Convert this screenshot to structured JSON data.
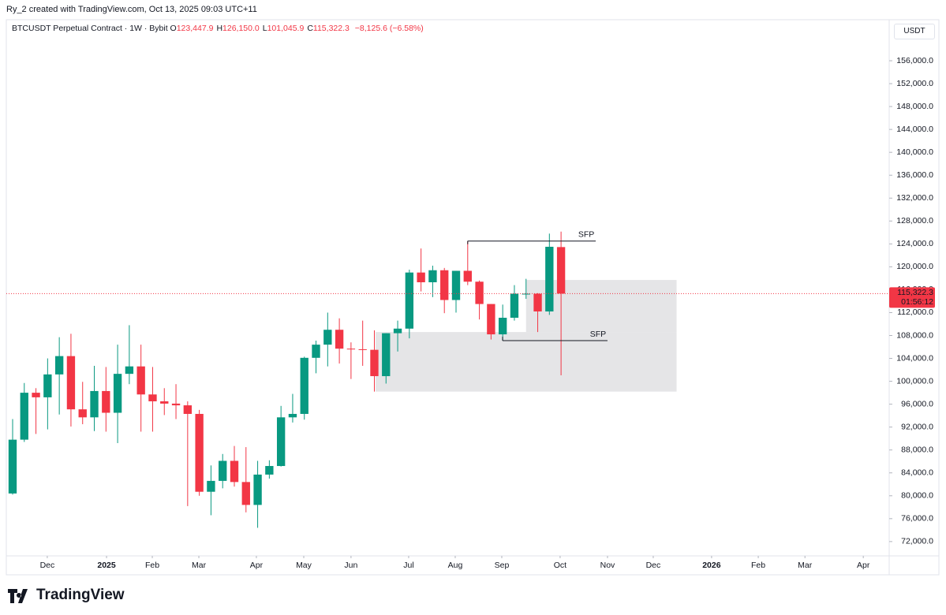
{
  "header": {
    "credit": "Ry_2 created with TradingView.com, Oct 13, 2025 09:03 UTC+11",
    "symbol": "BTCUSDT Perpetual Contract · 1W · Bybit",
    "ohlc": [
      {
        "label": "O",
        "value": "123,447.9"
      },
      {
        "label": "H",
        "value": "126,150.0"
      },
      {
        "label": "L",
        "value": "101,045.9"
      },
      {
        "label": "C",
        "value": "115,322.3"
      }
    ],
    "change": "−8,125.6 (−6.58%)",
    "unit": "USDT"
  },
  "chart_data": {
    "type": "candlestick",
    "x": [
      0,
      1,
      2,
      3,
      4,
      5,
      6,
      7,
      8,
      9,
      10,
      11,
      12,
      13,
      14,
      15,
      16,
      17,
      18,
      19,
      20,
      21,
      22,
      23,
      24,
      25,
      26,
      27,
      28,
      29,
      30,
      31,
      32,
      33,
      34,
      35,
      36,
      37,
      38,
      39,
      40,
      41,
      42,
      43,
      44,
      45,
      46,
      47
    ],
    "open": [
      80400,
      89800,
      98000,
      97200,
      101200,
      104400,
      95100,
      93700,
      98300,
      94500,
      101300,
      102600,
      97700,
      96500,
      96100,
      95800,
      94300,
      80700,
      82600,
      86100,
      82400,
      78400,
      83700,
      85200,
      93700,
      94300,
      104100,
      106400,
      109000,
      105700,
      105600,
      105500,
      100900,
      108400,
      109200,
      119000,
      117300,
      119400,
      114200,
      119300,
      117400,
      113500,
      108200,
      111100,
      115300,
      115300,
      112200,
      123447.9
    ],
    "high": [
      93400,
      99700,
      98800,
      104000,
      107700,
      108300,
      99900,
      102700,
      102500,
      106400,
      109800,
      106400,
      102500,
      98800,
      99500,
      96500,
      95000,
      85300,
      87300,
      88700,
      88500,
      86100,
      86200,
      95700,
      97800,
      104300,
      107100,
      112000,
      111000,
      106800,
      110600,
      108900,
      108400,
      110600,
      119500,
      123200,
      120200,
      119800,
      119300,
      124500,
      117600,
      113500,
      113400,
      116800,
      117900,
      115400,
      125800,
      126150.0
    ],
    "low": [
      80200,
      89400,
      90800,
      91600,
      94200,
      92100,
      92500,
      91300,
      91200,
      89200,
      99500,
      91200,
      91200,
      94100,
      93400,
      78200,
      80000,
      76600,
      81300,
      81600,
      77100,
      74400,
      83000,
      85100,
      92800,
      93300,
      101400,
      102600,
      103100,
      100400,
      102700,
      98200,
      99600,
      105200,
      107500,
      115700,
      114700,
      111900,
      112000,
      116800,
      110800,
      107300,
      107100,
      110600,
      114400,
      108600,
      111600,
      101045.9
    ],
    "close": [
      89800,
      98000,
      97200,
      101200,
      104400,
      95100,
      93700,
      98300,
      94500,
      101300,
      102600,
      97700,
      96500,
      96100,
      95800,
      94300,
      80700,
      82600,
      86100,
      82400,
      78400,
      83700,
      85200,
      93700,
      94300,
      104100,
      106400,
      109000,
      105700,
      105600,
      105500,
      100900,
      108400,
      109200,
      119000,
      117300,
      119400,
      114200,
      119300,
      117400,
      113500,
      108200,
      111100,
      115300,
      115300,
      112200,
      123500,
      115322.3
    ],
    "up_color": "#089981",
    "down_color": "#f23645",
    "xlim": [
      -0.54,
      75.12
    ],
    "xticks": [
      {
        "value": 2.97,
        "label": "Dec"
      },
      {
        "value": 8.05,
        "label": "2025"
      },
      {
        "value": 11.97,
        "label": "Feb"
      },
      {
        "value": 15.96,
        "label": "Mar"
      },
      {
        "value": 20.89,
        "label": "Apr"
      },
      {
        "value": 24.95,
        "label": "May"
      },
      {
        "value": 29.0,
        "label": "Jun"
      },
      {
        "value": 33.94,
        "label": "Jul"
      },
      {
        "value": 37.93,
        "label": "Aug"
      },
      {
        "value": 41.92,
        "label": "Sep"
      },
      {
        "value": 46.92,
        "label": "Oct"
      },
      {
        "value": 50.98,
        "label": "Nov"
      },
      {
        "value": 54.9,
        "label": "Dec"
      },
      {
        "value": 59.9,
        "label": "2026"
      },
      {
        "value": 63.9,
        "label": "Feb"
      },
      {
        "value": 67.9,
        "label": "Mar"
      },
      {
        "value": 72.9,
        "label": "Apr"
      }
    ],
    "ylim": [
      69500,
      160000
    ],
    "yticks": [
      {
        "value": 72000,
        "label": "72,000.0"
      },
      {
        "value": 76000,
        "label": "76,000.0"
      },
      {
        "value": 80000,
        "label": "80,000.0"
      },
      {
        "value": 84000,
        "label": "84,000.0"
      },
      {
        "value": 88000,
        "label": "88,000.0"
      },
      {
        "value": 92000,
        "label": "92,000.0"
      },
      {
        "value": 96000,
        "label": "96,000.0"
      },
      {
        "value": 100000,
        "label": "100,000.0"
      },
      {
        "value": 104000,
        "label": "104,000.0"
      },
      {
        "value": 108000,
        "label": "108,000.0"
      },
      {
        "value": 112000,
        "label": "112,000.0"
      },
      {
        "value": 116000,
        "label": "116,000.0"
      },
      {
        "value": 120000,
        "label": "120,000.0"
      },
      {
        "value": 124000,
        "label": "124,000.0"
      },
      {
        "value": 128000,
        "label": "128,000.0"
      },
      {
        "value": 132000,
        "label": "132,000.0"
      },
      {
        "value": 136000,
        "label": "136,000.0"
      },
      {
        "value": 140000,
        "label": "140,000.0"
      },
      {
        "value": 144000,
        "label": "144,000.0"
      },
      {
        "value": 148000,
        "label": "148,000.0"
      },
      {
        "value": 152000,
        "label": "152,000.0"
      },
      {
        "value": 156000,
        "label": "156,000.0"
      }
    ],
    "last_price": {
      "value": 115322.3,
      "label": "115,322.3",
      "countdown": "01:56:12"
    },
    "zones": [
      {
        "x": [
          31.1,
          56.9
        ],
        "y": [
          98200,
          108600
        ],
        "color": "#e0e1e3"
      },
      {
        "x": [
          44.0,
          56.9
        ],
        "y": [
          108600,
          117700
        ],
        "color": "#e0e1e3"
      }
    ],
    "annotations": [
      {
        "text": "SFP",
        "x": [
          39.0,
          49.97
        ],
        "y": 124500
      },
      {
        "text": "SFP",
        "x": [
          41.99,
          50.98
        ],
        "y": 107100
      }
    ]
  },
  "footer": {
    "logo": "TradingView"
  }
}
